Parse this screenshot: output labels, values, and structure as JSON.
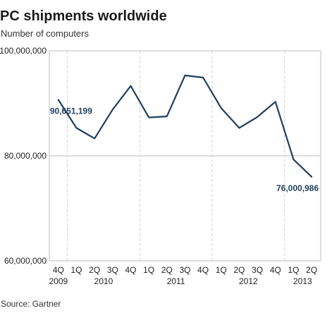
{
  "chart_data": {
    "type": "line",
    "title": "PC shipments worldwide",
    "subtitle": "Number of computers",
    "source": "Source: Gartner",
    "xlabel": "",
    "ylabel": "",
    "ylim": [
      60000000,
      100000000
    ],
    "y_ticks": [
      60000000,
      80000000,
      100000000
    ],
    "y_tick_labels": [
      "60,000,000",
      "80,000,000",
      "100,000,000"
    ],
    "gridlines": true,
    "categories": [
      "4Q",
      "1Q",
      "2Q",
      "3Q",
      "4Q",
      "1Q",
      "2Q",
      "3Q",
      "4Q",
      "1Q",
      "2Q",
      "3Q",
      "4Q",
      "1Q",
      "2Q"
    ],
    "year_labels": [
      {
        "label": "2009",
        "category_index": 0
      },
      {
        "label": "2010",
        "category_index": 2.5
      },
      {
        "label": "2011",
        "category_index": 6.5
      },
      {
        "label": "2012",
        "category_index": 10.5
      },
      {
        "label": "2013",
        "category_index": 13.5
      }
    ],
    "year_dividers": [
      0.5,
      4.5,
      8.5,
      12.5
    ],
    "series": [
      {
        "values": [
          90651199,
          85300000,
          83300000,
          88800000,
          93300000,
          87300000,
          87500000,
          95300000,
          94900000,
          89100000,
          85300000,
          87400000,
          90300000,
          79300000,
          76000986
        ],
        "color": "#1f3f5e"
      }
    ],
    "annotations": [
      {
        "index": 0,
        "text": "90,651,199",
        "position": "below"
      },
      {
        "index": 14,
        "text": "76,000,986",
        "position": "below"
      }
    ]
  }
}
